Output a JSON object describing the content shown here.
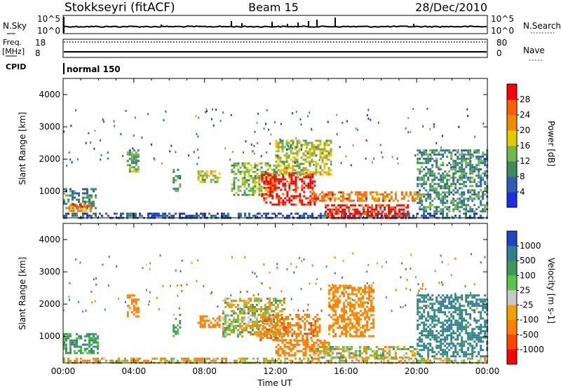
{
  "header": {
    "station": "Stokkseyri (fitACF)",
    "beam": "Beam 15",
    "date": "28/Dec/2010"
  },
  "strip_panels": {
    "nsky_label": "N.Sky",
    "nsky_tick_top": "10^5",
    "nsky_tick_bottom": "10^0",
    "nsearch_tick_top": "10^5",
    "nsearch_tick_bottom": "10^0",
    "nsearch_label": "N.Search",
    "freq_label_line1": "Freq.",
    "freq_label_line2": "[MHz]",
    "freq_tick_top": "18",
    "freq_tick_bottom": "8",
    "nave_tick_top": "80",
    "nave_tick_bottom": "0",
    "nave_label": "Nave",
    "cpid_label": "CPID",
    "cpid_value": "normal 150"
  },
  "axes": {
    "ylabel": "Slant Range [km]",
    "xlabel": "Time UT",
    "y_ticks": [
      "1000",
      "2000",
      "3000",
      "4000"
    ],
    "x_ticks": [
      "00:00",
      "04:00",
      "08:00",
      "12:00",
      "16:00",
      "20:00",
      "00:00"
    ]
  },
  "colorbars": {
    "power": {
      "label": "Power [dB]",
      "ticks": [
        "4",
        "8",
        "12",
        "16",
        "20",
        "24",
        "28"
      ],
      "colors": [
        "#1e2ee8",
        "#2a5fb4",
        "#3d8a5e",
        "#6fb84a",
        "#e8c800",
        "#f58a00",
        "#ff6000",
        "#ff0000"
      ]
    },
    "velocity": {
      "label": "Velocity [m s-1]",
      "ticks": [
        "1000",
        "500",
        "100",
        "25",
        "-25",
        "-100",
        "-500",
        "-1000"
      ],
      "colors": [
        "#1e44c8",
        "#2f7f8c",
        "#3e9a5a",
        "#55c848",
        "#c8c8c8",
        "#f0a000",
        "#ff8000",
        "#ff4400",
        "#ff0000"
      ]
    }
  },
  "chart_data": [
    {
      "type": "heatmap",
      "title": "Power",
      "xlabel": "Time UT",
      "ylabel": "Slant Range [km]",
      "xlim": [
        0,
        24
      ],
      "ylim": [
        180,
        4500
      ],
      "zlabel": "Power [dB]",
      "zlim": [
        0,
        32
      ],
      "regions": [
        {
          "t": [
            0.0,
            1.8
          ],
          "r": [
            500,
            1100
          ],
          "z": 10
        },
        {
          "t": [
            0.3,
            1.5
          ],
          "r": [
            380,
            620
          ],
          "z": 24
        },
        {
          "t": [
            0.0,
            24.0
          ],
          "r": [
            200,
            340
          ],
          "z": 6
        },
        {
          "t": [
            3.6,
            4.2
          ],
          "r": [
            1600,
            2300
          ],
          "z": 12
        },
        {
          "t": [
            6.2,
            6.6
          ],
          "r": [
            1000,
            1700
          ],
          "z": 12
        },
        {
          "t": [
            7.6,
            8.8
          ],
          "r": [
            1300,
            1650
          ],
          "z": 16
        },
        {
          "t": [
            9.5,
            12.0
          ],
          "r": [
            900,
            1900
          ],
          "z": 14
        },
        {
          "t": [
            11.2,
            14.2
          ],
          "r": [
            600,
            1600
          ],
          "z": 30
        },
        {
          "t": [
            12.0,
            15.2
          ],
          "r": [
            1500,
            2600
          ],
          "z": 16
        },
        {
          "t": [
            14.0,
            20.5
          ],
          "r": [
            700,
            1000
          ],
          "z": 24
        },
        {
          "t": [
            14.8,
            19.5
          ],
          "r": [
            200,
            600
          ],
          "z": 30
        },
        {
          "t": [
            20.0,
            24.0
          ],
          "r": [
            400,
            2300
          ],
          "z": 10
        }
      ]
    },
    {
      "type": "heatmap",
      "title": "Velocity",
      "xlabel": "Time UT",
      "ylabel": "Slant Range [km]",
      "xlim": [
        0,
        24
      ],
      "ylim": [
        180,
        4500
      ],
      "zlabel": "Velocity [m s-1]",
      "zlim": [
        -1000,
        1000
      ],
      "regions": [
        {
          "t": [
            0.0,
            2.0
          ],
          "r": [
            450,
            1100
          ],
          "z": 200
        },
        {
          "t": [
            0.0,
            24.0
          ],
          "r": [
            200,
            340
          ],
          "z": -50
        },
        {
          "t": [
            3.6,
            4.2
          ],
          "r": [
            1600,
            2300
          ],
          "z": -300
        },
        {
          "t": [
            6.2,
            6.6
          ],
          "r": [
            1000,
            1700
          ],
          "z": 150
        },
        {
          "t": [
            7.6,
            8.8
          ],
          "r": [
            1300,
            1650
          ],
          "z": -300
        },
        {
          "t": [
            9.0,
            12.5
          ],
          "r": [
            1000,
            2200
          ],
          "z": 0
        },
        {
          "t": [
            11.0,
            14.5
          ],
          "r": [
            900,
            1700
          ],
          "z": -400
        },
        {
          "t": [
            12.0,
            15.0
          ],
          "r": [
            400,
            900
          ],
          "z": -250
        },
        {
          "t": [
            14.0,
            20.0
          ],
          "r": [
            350,
            700
          ],
          "z": 0
        },
        {
          "t": [
            15.0,
            17.5
          ],
          "r": [
            1000,
            2600
          ],
          "z": -200
        },
        {
          "t": [
            20.0,
            24.0
          ],
          "r": [
            400,
            2300
          ],
          "z": 400
        }
      ]
    }
  ]
}
